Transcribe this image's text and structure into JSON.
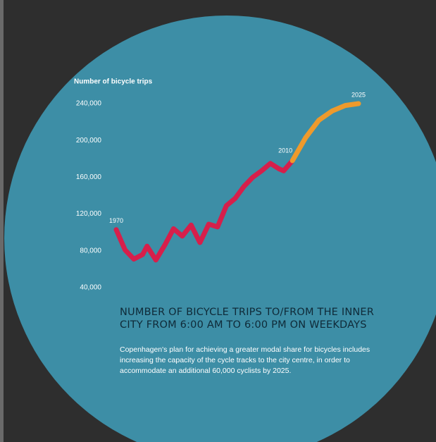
{
  "chart_data": {
    "type": "line",
    "y_axis_label": "Number of bicycle trips",
    "title": "NUMBER OF BICYCLE TRIPS TO/FROM THE INNER CITY FROM 6:00 AM TO 6:00 PM ON WEEKDAYS",
    "description": "Copenhagen's plan for achieving a greater modal share for bicycles includes increasing the capacity of the cycle tracks to the city centre, in order to accommodate an additional 60,000 cyclists by 2025.",
    "x": [
      1970,
      1972,
      1974,
      1976,
      1977,
      1979,
      1981,
      1983,
      1985,
      1987,
      1989,
      1991,
      1993,
      1995,
      1997,
      1999,
      2001,
      2003,
      2005,
      2007,
      2008,
      2010,
      2013,
      2016,
      2019,
      2022,
      2025
    ],
    "series": [
      {
        "color": "#d61f4b",
        "values": [
          103000,
          81000,
          71000,
          76000,
          85000,
          70000,
          86000,
          104000,
          96000,
          108000,
          89000,
          109000,
          106000,
          129000,
          137000,
          150000,
          160000,
          167000,
          175000,
          169000,
          167000,
          178000,
          null,
          null,
          null,
          null,
          null
        ]
      },
      {
        "color": "#ee9a2c",
        "values": [
          null,
          null,
          null,
          null,
          null,
          null,
          null,
          null,
          null,
          null,
          null,
          null,
          null,
          null,
          null,
          null,
          null,
          null,
          null,
          null,
          null,
          178000,
          203000,
          222000,
          232000,
          238000,
          240000
        ]
      }
    ],
    "annotations": [
      "1970",
      "2010",
      "2025"
    ],
    "xlim": [
      1970,
      2025
    ],
    "ylim": [
      40000,
      240000
    ],
    "yticks": [
      {
        "value": 40000,
        "label": "40,000"
      },
      {
        "value": 80000,
        "label": "80,000"
      },
      {
        "value": 120000,
        "label": "120,000"
      },
      {
        "value": 160000,
        "label": "160,000"
      },
      {
        "value": 200000,
        "label": "200,000"
      },
      {
        "value": 240000,
        "label": "240,000"
      }
    ],
    "grid": false
  }
}
